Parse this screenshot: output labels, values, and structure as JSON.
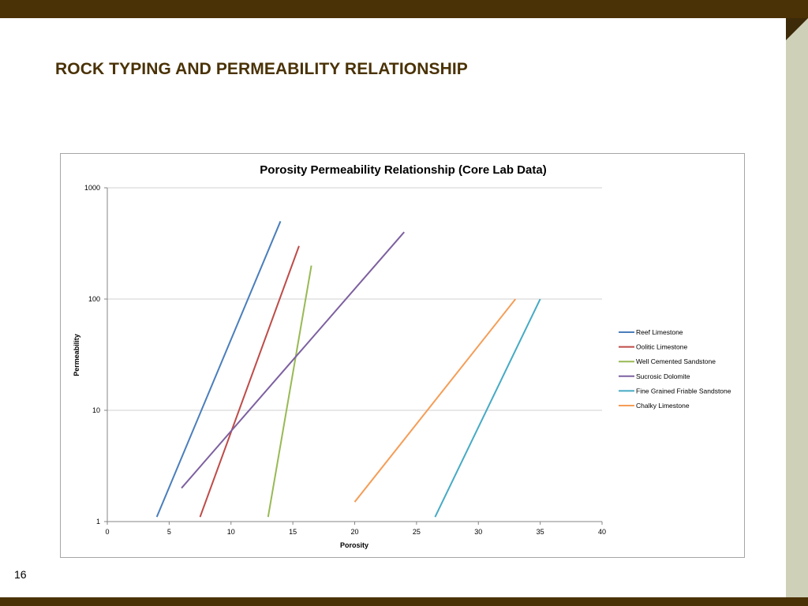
{
  "slide": {
    "title": "ROCK TYPING AND PERMEABILITY RELATIONSHIP",
    "page_number": "16"
  },
  "colors": {
    "brand_dark": "#4a3206",
    "side_bar": "#cfd0b8"
  },
  "chart_data": {
    "type": "line",
    "title": "Porosity Permeability Relationship  (Core Lab Data)",
    "xlabel": "Porosity",
    "ylabel": "Permeability",
    "xlim": [
      0,
      40
    ],
    "ylim": [
      1,
      1000
    ],
    "y_scale": "log",
    "x_ticks": [
      "0",
      "5",
      "10",
      "15",
      "20",
      "25",
      "30",
      "35",
      "40"
    ],
    "y_ticks": [
      "1",
      "10",
      "100",
      "1000"
    ],
    "grid": "horizontal",
    "legend_position": "right",
    "series": [
      {
        "name": "Reef Limestone",
        "color": "#4a7ebb",
        "x": [
          4,
          14
        ],
        "y": [
          1.1,
          500
        ]
      },
      {
        "name": "Oolitic Limestone",
        "color": "#be4b48",
        "x": [
          7.5,
          15.5
        ],
        "y": [
          1.1,
          300
        ]
      },
      {
        "name": "Well Cemented Sandstone",
        "color": "#98b954",
        "x": [
          13,
          16.5
        ],
        "y": [
          1.1,
          200
        ]
      },
      {
        "name": "Sucrosic Dolomite",
        "color": "#7d60a0",
        "x": [
          6,
          24
        ],
        "y": [
          2,
          400
        ]
      },
      {
        "name": "Fine Grained Friable Sandstone",
        "color": "#46aac4",
        "x": [
          26.5,
          35
        ],
        "y": [
          1.1,
          100
        ]
      },
      {
        "name": "Chalky Limestone",
        "color": "#f59d56",
        "x": [
          20,
          33
        ],
        "y": [
          1.5,
          100
        ]
      }
    ]
  }
}
